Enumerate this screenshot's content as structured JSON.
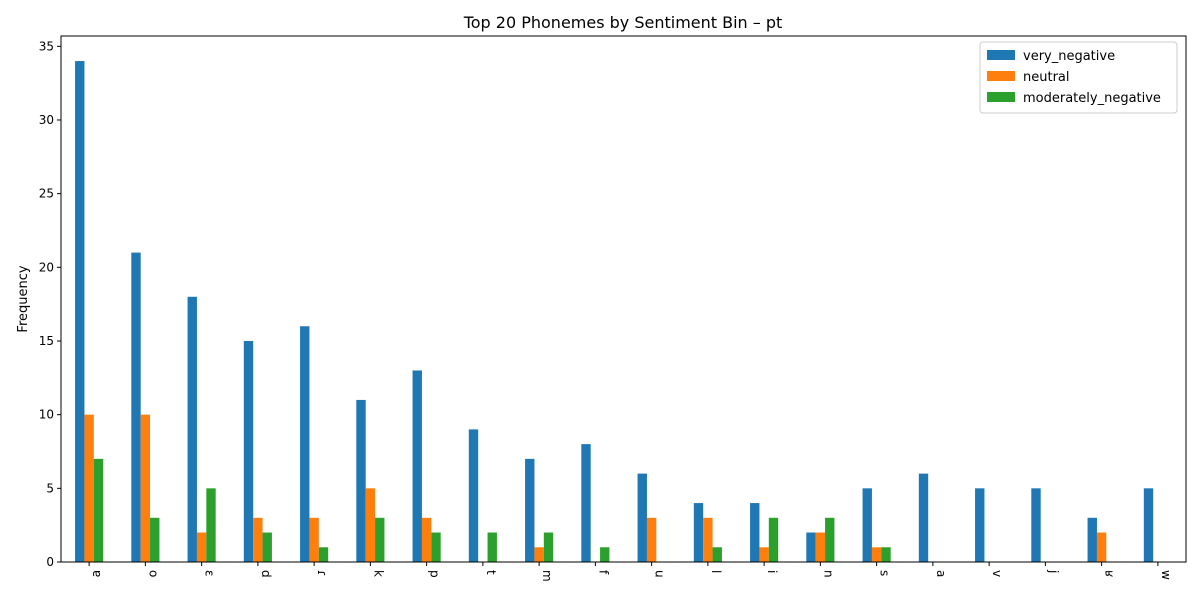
{
  "chart_data": {
    "type": "bar",
    "title": "Top 20 Phonemes by Sentiment Bin – pt",
    "xlabel": "",
    "ylabel": "Frequency",
    "ylim": [
      0,
      35.7
    ],
    "yticks": [
      0,
      5,
      10,
      15,
      20,
      25,
      30,
      35
    ],
    "grid": false,
    "legend_position": "top-right",
    "categories": [
      "ɐ",
      "o",
      "ɛ",
      "d",
      "ɾ",
      "k",
      "p",
      "t",
      "m",
      "f",
      "u",
      "l",
      "i",
      "n",
      "s",
      "a",
      "v",
      "j",
      "ʁ",
      "w"
    ],
    "series": [
      {
        "name": "very_negative",
        "color": "#1f77b4",
        "values": [
          34,
          21,
          18,
          15,
          16,
          11,
          13,
          9,
          7,
          8,
          6,
          4,
          4,
          2,
          5,
          6,
          5,
          5,
          3,
          5
        ]
      },
      {
        "name": "neutral",
        "color": "#ff7f0e",
        "values": [
          10,
          10,
          2,
          3,
          3,
          5,
          3,
          0,
          1,
          0,
          3,
          3,
          1,
          2,
          1,
          0,
          0,
          0,
          2,
          0
        ]
      },
      {
        "name": "moderately_negative",
        "color": "#2ca02c",
        "values": [
          7,
          3,
          5,
          2,
          1,
          3,
          2,
          2,
          2,
          1,
          0,
          1,
          3,
          3,
          1,
          0,
          0,
          0,
          0,
          0
        ]
      }
    ]
  }
}
